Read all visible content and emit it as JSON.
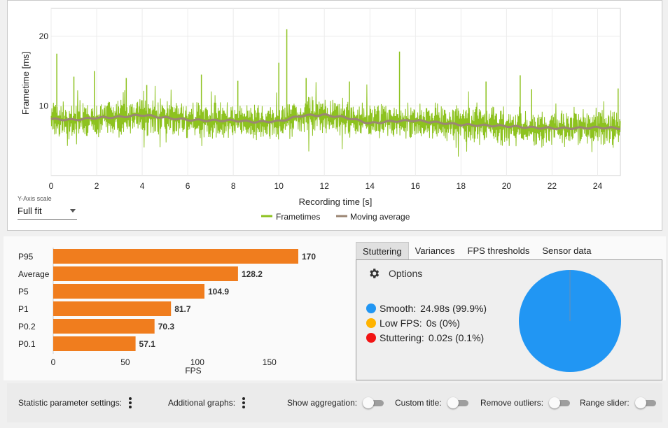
{
  "colors": {
    "frametimes": "#8dc21f",
    "moving_average": "#9b8673",
    "bars": "#f07d1e",
    "smooth": "#2196f3",
    "low_fps": "#ffb300",
    "stuttering": "#f21414"
  },
  "frametime_chart": {
    "xlabel": "Recording time [s]",
    "ylabel": "Frametime [ms]",
    "legend": {
      "frametimes": "Frametimes",
      "moving_average": "Moving average"
    },
    "y_scale_label": "Y-Axis scale",
    "y_scale_value": "Full fit"
  },
  "tabs": [
    "Stuttering",
    "Variances",
    "FPS thresholds",
    "Sensor data"
  ],
  "stuttering": {
    "options_label": "Options",
    "items": [
      {
        "label": "Smooth:",
        "value": "24.98s (99.9%)"
      },
      {
        "label": "Low FPS:",
        "value": "0s (0%)"
      },
      {
        "label": "Stuttering:",
        "value": "0.02s (0.1%)"
      }
    ]
  },
  "bottom_bar": {
    "statistic_settings": "Statistic parameter settings:",
    "additional_graphs": "Additional graphs:",
    "show_aggregation": "Show aggregation:",
    "custom_title": "Custom title:",
    "remove_outliers": "Remove outliers:",
    "range_slider": "Range slider:"
  },
  "chart_data": [
    {
      "type": "line",
      "title": "",
      "xlabel": "Recording time [s]",
      "ylabel": "Frametime [ms]",
      "xlim": [
        0,
        25
      ],
      "ylim": [
        0,
        24
      ],
      "xticks": [
        0,
        2,
        4,
        6,
        8,
        10,
        12,
        14,
        16,
        18,
        20,
        22,
        24
      ],
      "yticks": [
        10,
        20
      ],
      "grid": true,
      "legend": "bottom-center",
      "series": [
        {
          "name": "Frametimes",
          "note": "noisy frame-time trace estimated from plot; baseline follows moving average with spikes",
          "spikes": [
            {
              "x": 0.25,
              "y": 17.5
            },
            {
              "x": 1.0,
              "y": 14.2
            },
            {
              "x": 1.9,
              "y": 15.0
            },
            {
              "x": 3.3,
              "y": 14.0
            },
            {
              "x": 4.2,
              "y": 13.0
            },
            {
              "x": 6.6,
              "y": 14.5
            },
            {
              "x": 8.2,
              "y": 13.6
            },
            {
              "x": 10.35,
              "y": 21.0
            },
            {
              "x": 10.0,
              "y": 16.2
            },
            {
              "x": 11.2,
              "y": 14.0
            },
            {
              "x": 13.1,
              "y": 13.5
            },
            {
              "x": 15.3,
              "y": 17.8
            },
            {
              "x": 19.1,
              "y": 13.5
            },
            {
              "x": 20.6,
              "y": 14.4
            },
            {
              "x": 21.1,
              "y": 12.4
            },
            {
              "x": 24.9,
              "y": 12.5
            }
          ]
        },
        {
          "name": "Moving average",
          "x": [
            0,
            1,
            2,
            3,
            4,
            5,
            6,
            7,
            8,
            9,
            10,
            11,
            12,
            13,
            14,
            15,
            16,
            17,
            18,
            19,
            20,
            21,
            22,
            23,
            24,
            25
          ],
          "y": [
            8.1,
            8.0,
            8.3,
            8.4,
            8.7,
            8.3,
            8.0,
            7.9,
            7.9,
            7.7,
            7.8,
            8.6,
            8.7,
            8.3,
            7.5,
            7.8,
            7.9,
            7.6,
            7.3,
            7.2,
            7.1,
            6.9,
            6.8,
            6.8,
            6.9,
            6.8
          ]
        }
      ]
    },
    {
      "type": "bar",
      "orientation": "horizontal",
      "title": "",
      "xlabel": "FPS",
      "categories": [
        "P95",
        "Average",
        "P5",
        "P1",
        "P0.2",
        "P0.1"
      ],
      "values": [
        170,
        128.2,
        104.9,
        81.7,
        70.3,
        57.1
      ],
      "value_labels": [
        "170",
        "128.2",
        "104.9",
        "81.7",
        "70.3",
        "57.1"
      ],
      "xlim": [
        0,
        170
      ],
      "xticks": [
        0,
        50,
        100,
        150
      ]
    },
    {
      "type": "pie",
      "title": "",
      "labels": [
        "Smooth",
        "Low FPS",
        "Stuttering"
      ],
      "values": [
        99.9,
        0,
        0.1
      ]
    }
  ]
}
